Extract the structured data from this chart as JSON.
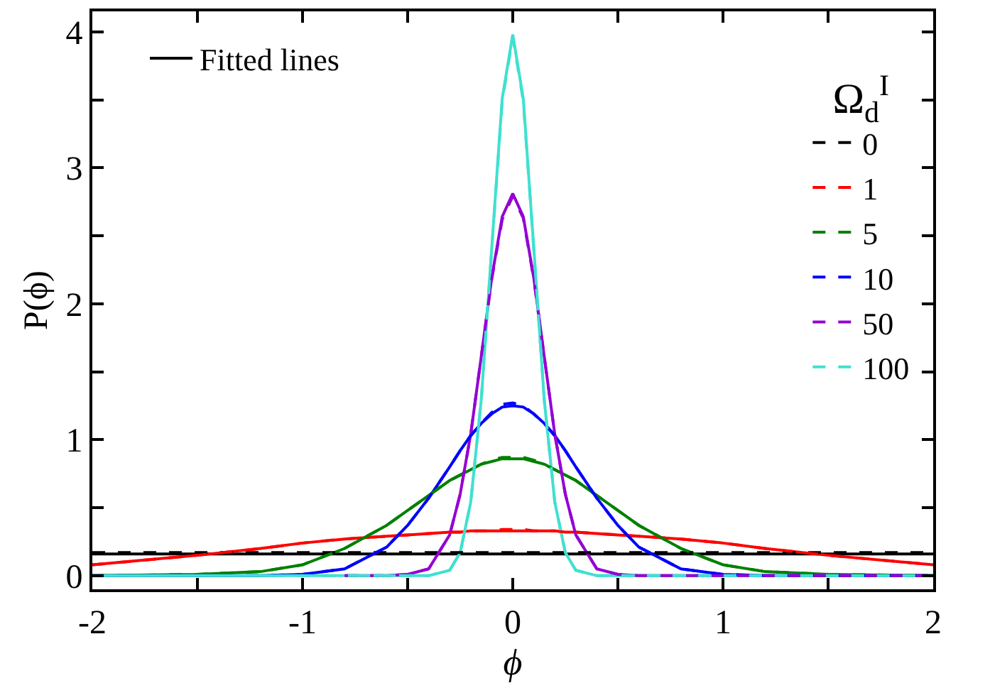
{
  "chart_data": {
    "type": "line",
    "xlabel": "ϕ",
    "ylabel": "P(ϕ)",
    "legend_title": "Ω$_{d}$$^{I}$",
    "x": [
      -2,
      -1.5,
      -1.2,
      -1,
      -0.8,
      -0.6,
      -0.5,
      -0.4,
      -0.3,
      -0.25,
      -0.2,
      -0.15,
      -0.1,
      -0.05,
      0,
      0.05,
      0.1,
      0.15,
      0.2,
      0.25,
      0.3,
      0.4,
      0.5,
      0.6,
      0.8,
      1,
      1.2,
      1.5,
      2
    ],
    "xlim": [
      -2,
      2
    ],
    "xticks": [
      -2,
      {
        "value": -1.5,
        "label": null
      },
      -1,
      {
        "value": -0.5,
        "label": null
      },
      0,
      {
        "value": 0.5,
        "label": null
      },
      1,
      {
        "value": 1.5,
        "label": null
      },
      2
    ],
    "ylim": [
      -0.1,
      4.15
    ],
    "yticks": [
      0,
      {
        "value": 0.5,
        "label": null
      },
      1,
      {
        "value": 1.5,
        "label": null
      },
      2,
      {
        "value": 2.5,
        "label": null
      },
      3,
      {
        "value": 3.5,
        "label": null
      },
      4
    ],
    "grid": false,
    "legend": "top right",
    "marker": "none",
    "series": [
      {
        "name": "Fitted lines",
        "color": "#000000",
        "line_style": "solid",
        "values": [
          0.16,
          0.16,
          0.16,
          0.16,
          0.16,
          0.16,
          0.16,
          0.16,
          0.16,
          0.16,
          0.16,
          0.16,
          0.16,
          0.16,
          0.16,
          0.16,
          0.16,
          0.16,
          0.16,
          0.16,
          0.16,
          0.16,
          0.16,
          0.16,
          0.16,
          0.16,
          0.16,
          0.16,
          0.16
        ]
      },
      {
        "color": "#ff0000",
        "line_style": "solid",
        "values": [
          0.08,
          0.15,
          0.2,
          0.24,
          0.27,
          0.29,
          0.3,
          0.31,
          0.32,
          0.32,
          0.33,
          0.33,
          0.33,
          0.33,
          0.33,
          0.33,
          0.33,
          0.33,
          0.33,
          0.32,
          0.32,
          0.31,
          0.3,
          0.29,
          0.27,
          0.24,
          0.2,
          0.15,
          0.08
        ]
      },
      {
        "color": "#008000",
        "line_style": "solid",
        "values": [
          0,
          0.01,
          0.03,
          0.08,
          0.2,
          0.37,
          0.48,
          0.59,
          0.7,
          0.74,
          0.78,
          0.82,
          0.84,
          0.86,
          0.86,
          0.86,
          0.84,
          0.82,
          0.78,
          0.74,
          0.7,
          0.59,
          0.48,
          0.37,
          0.2,
          0.08,
          0.03,
          0.01,
          0
        ]
      },
      {
        "color": "#0000ff",
        "line_style": "solid",
        "values": [
          0,
          0,
          0,
          0.01,
          0.05,
          0.21,
          0.37,
          0.57,
          0.8,
          0.92,
          1.03,
          1.12,
          1.19,
          1.24,
          1.25,
          1.24,
          1.19,
          1.12,
          1.03,
          0.92,
          0.8,
          0.57,
          0.37,
          0.21,
          0.05,
          0.01,
          0,
          0,
          0
        ]
      },
      {
        "color": "#9400d3",
        "line_style": "solid",
        "values": [
          null,
          null,
          null,
          null,
          0,
          0,
          0.01,
          0.05,
          0.3,
          0.6,
          1.04,
          1.61,
          2.19,
          2.64,
          2.81,
          2.64,
          2.19,
          1.61,
          1.04,
          0.6,
          0.3,
          0.05,
          0.01,
          0,
          0,
          0,
          0,
          0,
          0
        ]
      },
      {
        "color": "#40e0d0",
        "line_style": "solid",
        "values": [
          0,
          0,
          0,
          0,
          0,
          0,
          0,
          0,
          0.04,
          0.17,
          0.54,
          1.29,
          2.41,
          3.51,
          3.98,
          3.51,
          2.41,
          1.29,
          0.54,
          0.17,
          0.04,
          0,
          0,
          0,
          0,
          0,
          0,
          0,
          0
        ]
      },
      {
        "name": "0",
        "color": "#000000",
        "line_style": "dashed",
        "values": [
          0.17,
          0.17,
          0.17,
          0.17,
          0.17,
          0.17,
          0.17,
          0.17,
          0.17,
          0.17,
          0.17,
          0.17,
          0.17,
          0.17,
          0.17,
          0.17,
          0.17,
          0.17,
          0.17,
          0.17,
          0.17,
          0.17,
          0.17,
          0.17,
          0.17,
          0.17,
          0.17,
          0.17,
          0.17
        ]
      },
      {
        "name": "1",
        "color": "#ff0000",
        "line_style": "dashed",
        "values": [
          0.08,
          0.15,
          0.2,
          0.24,
          0.27,
          0.29,
          0.3,
          0.31,
          0.32,
          0.32,
          0.33,
          0.33,
          0.33,
          0.34,
          0.34,
          0.34,
          0.33,
          0.33,
          0.33,
          0.32,
          0.32,
          0.31,
          0.3,
          0.29,
          0.27,
          0.24,
          0.2,
          0.15,
          0.08
        ]
      },
      {
        "name": "5",
        "color": "#008000",
        "line_style": "dashed",
        "values": [
          0,
          0.01,
          0.03,
          0.08,
          0.2,
          0.37,
          0.48,
          0.59,
          0.7,
          0.74,
          0.78,
          0.82,
          0.85,
          0.87,
          0.87,
          0.87,
          0.85,
          0.82,
          0.78,
          0.74,
          0.7,
          0.59,
          0.48,
          0.37,
          0.2,
          0.08,
          0.03,
          0.01,
          0
        ]
      },
      {
        "name": "10",
        "color": "#0000ff",
        "line_style": "dashed",
        "values": [
          0,
          0,
          0,
          0.01,
          0.05,
          0.21,
          0.37,
          0.57,
          0.8,
          0.92,
          1.03,
          1.12,
          1.2,
          1.26,
          1.27,
          1.25,
          1.19,
          1.12,
          1.03,
          0.92,
          0.8,
          0.57,
          0.37,
          0.21,
          0.05,
          0.01,
          0,
          0,
          0
        ]
      },
      {
        "name": "50",
        "color": "#9400d3",
        "line_style": "dashed",
        "values": [
          null,
          null,
          null,
          null,
          0,
          0,
          0.01,
          0.05,
          0.3,
          0.6,
          1.04,
          1.61,
          2.18,
          2.62,
          2.79,
          2.63,
          2.18,
          1.61,
          1.04,
          0.6,
          0.3,
          0.05,
          0.01,
          0,
          0,
          0,
          0,
          0,
          0
        ]
      },
      {
        "name": "100",
        "color": "#40e0d0",
        "line_style": "dashed",
        "values": [
          0,
          0,
          0,
          0,
          0,
          0,
          0,
          0,
          0.04,
          0.17,
          0.54,
          1.29,
          2.4,
          3.49,
          3.96,
          3.49,
          2.4,
          1.29,
          0.54,
          0.17,
          0.04,
          0,
          0,
          0,
          0,
          0,
          0,
          0,
          0
        ]
      }
    ]
  }
}
